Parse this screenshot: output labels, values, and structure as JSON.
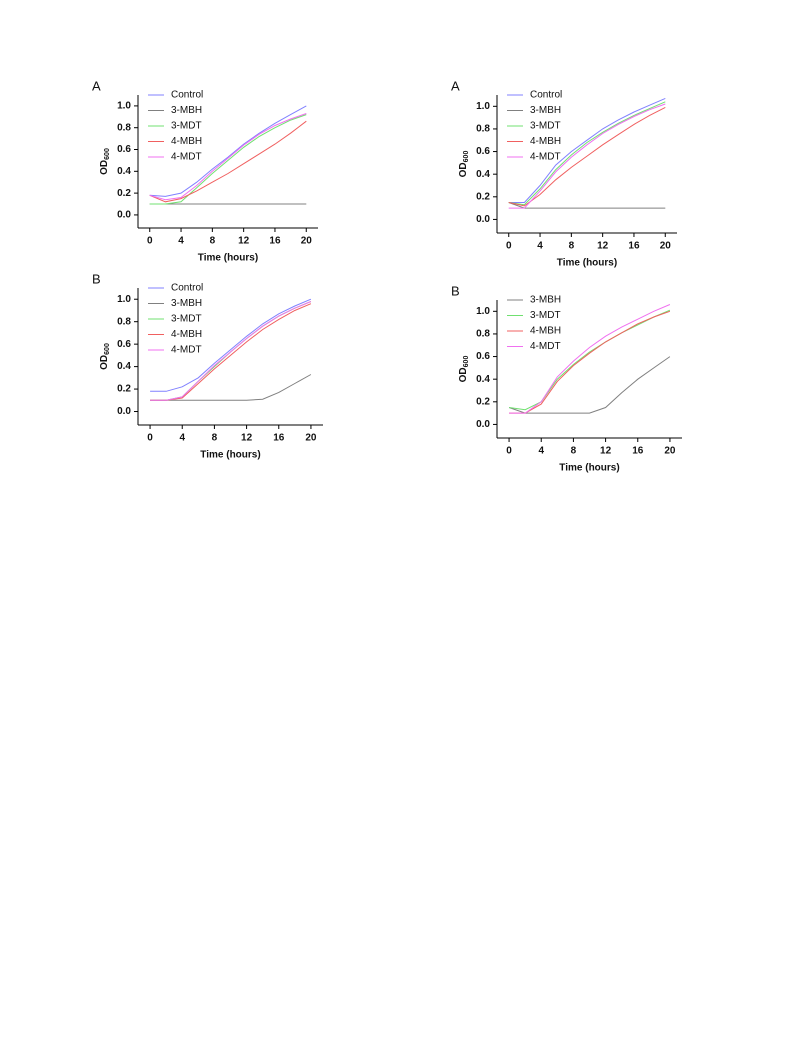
{
  "chart_data": [
    {
      "type": "line",
      "panel": "A",
      "xlabel": "Time (hours)",
      "ylabel": "OD",
      "ylabel_sub": "600",
      "x": [
        0,
        2,
        4,
        6,
        8,
        10,
        12,
        14,
        16,
        18,
        20
      ],
      "xlim": [
        -1.5,
        21.5
      ],
      "xticks": [
        0,
        4,
        8,
        12,
        16,
        20
      ],
      "ylim": [
        -0.12,
        1.1
      ],
      "yticks": [
        {
          "value": 0,
          "label": "0.0"
        },
        0.2,
        0.4,
        0.6,
        0.8,
        {
          "value": 1,
          "label": "1.0"
        }
      ],
      "series": [
        {
          "name": "Control",
          "color": "#8080ff",
          "values": [
            0.18,
            0.17,
            0.2,
            0.3,
            0.42,
            0.53,
            0.65,
            0.75,
            0.84,
            0.92,
            1.0
          ]
        },
        {
          "name": "3-MBH",
          "color": "#808080",
          "values": [
            0.1,
            0.1,
            0.1,
            0.1,
            0.1,
            0.1,
            0.1,
            0.1,
            0.1,
            0.1,
            0.1
          ]
        },
        {
          "name": "3-MDT",
          "color": "#70e070",
          "values": [
            0.1,
            0.1,
            0.12,
            0.25,
            0.38,
            0.5,
            0.62,
            0.72,
            0.8,
            0.87,
            0.92
          ]
        },
        {
          "name": "4-MBH",
          "color": "#f06060",
          "values": [
            0.18,
            0.12,
            0.15,
            0.22,
            0.3,
            0.38,
            0.47,
            0.56,
            0.65,
            0.75,
            0.86
          ]
        },
        {
          "name": "4-MDT",
          "color": "#f070f0",
          "values": [
            0.18,
            0.14,
            0.16,
            0.27,
            0.4,
            0.52,
            0.64,
            0.74,
            0.82,
            0.88,
            0.93
          ]
        }
      ]
    },
    {
      "type": "line",
      "panel": "A",
      "xlabel": "Time (hours)",
      "ylabel": "OD",
      "ylabel_sub": "600",
      "x": [
        0,
        2,
        4,
        6,
        8,
        10,
        12,
        14,
        16,
        18,
        20
      ],
      "xlim": [
        -1.5,
        21.5
      ],
      "xticks": [
        0,
        4,
        8,
        12,
        16,
        20
      ],
      "ylim": [
        -0.12,
        1.1
      ],
      "yticks": [
        {
          "value": 0,
          "label": "0.0"
        },
        0.2,
        0.4,
        0.6,
        0.8,
        {
          "value": 1,
          "label": "1.0"
        }
      ],
      "series": [
        {
          "name": "Control",
          "color": "#8080ff",
          "values": [
            0.15,
            0.15,
            0.3,
            0.48,
            0.6,
            0.7,
            0.8,
            0.88,
            0.95,
            1.01,
            1.07
          ]
        },
        {
          "name": "3-MBH",
          "color": "#808080",
          "values": [
            0.15,
            0.1,
            0.1,
            0.1,
            0.1,
            0.1,
            0.1,
            0.1,
            0.1,
            0.1,
            0.1
          ]
        },
        {
          "name": "3-MDT",
          "color": "#70e070",
          "values": [
            0.15,
            0.13,
            0.27,
            0.44,
            0.57,
            0.68,
            0.77,
            0.85,
            0.92,
            0.98,
            1.04
          ]
        },
        {
          "name": "4-MBH",
          "color": "#f06060",
          "values": [
            0.15,
            0.12,
            0.22,
            0.35,
            0.46,
            0.56,
            0.66,
            0.75,
            0.84,
            0.92,
            0.99
          ]
        },
        {
          "name": "4-MDT",
          "color": "#f070f0",
          "values": [
            0.1,
            0.1,
            0.25,
            0.42,
            0.55,
            0.66,
            0.76,
            0.84,
            0.91,
            0.97,
            1.02
          ]
        }
      ]
    },
    {
      "type": "line",
      "panel": "B",
      "xlabel": "Time (hours)",
      "ylabel": "OD",
      "ylabel_sub": "600",
      "x": [
        0,
        2,
        4,
        6,
        8,
        10,
        12,
        14,
        16,
        18,
        20
      ],
      "xlim": [
        -1.5,
        21.5
      ],
      "xticks": [
        0,
        4,
        8,
        12,
        16,
        20
      ],
      "ylim": [
        -0.12,
        1.1
      ],
      "yticks": [
        {
          "value": 0,
          "label": "0.0"
        },
        0.2,
        0.4,
        0.6,
        0.8,
        {
          "value": 1,
          "label": "1.0"
        }
      ],
      "series": [
        {
          "name": "Control",
          "color": "#8080ff",
          "values": [
            0.18,
            0.18,
            0.22,
            0.3,
            0.43,
            0.55,
            0.67,
            0.78,
            0.87,
            0.94,
            1.0
          ]
        },
        {
          "name": "3-MBH",
          "color": "#808080",
          "values": [
            0.1,
            0.1,
            0.1,
            0.1,
            0.1,
            0.1,
            0.1,
            0.11,
            0.17,
            0.25,
            0.33
          ]
        },
        {
          "name": "3-MDT",
          "color": "#70e070",
          "values": [
            0.1,
            0.1,
            0.13,
            0.27,
            0.4,
            0.53,
            0.65,
            0.76,
            0.85,
            0.92,
            0.98
          ]
        },
        {
          "name": "4-MBH",
          "color": "#f06060",
          "values": [
            0.1,
            0.1,
            0.12,
            0.25,
            0.38,
            0.5,
            0.62,
            0.73,
            0.82,
            0.9,
            0.96
          ]
        },
        {
          "name": "4-MDT",
          "color": "#f070f0",
          "values": [
            0.1,
            0.1,
            0.13,
            0.27,
            0.41,
            0.53,
            0.65,
            0.76,
            0.85,
            0.92,
            0.98
          ]
        }
      ]
    },
    {
      "type": "line",
      "panel": "B",
      "xlabel": "Time (hours)",
      "ylabel": "OD",
      "ylabel_sub": "600",
      "x": [
        0,
        2,
        4,
        6,
        8,
        10,
        12,
        14,
        16,
        18,
        20
      ],
      "xlim": [
        -1.5,
        21.5
      ],
      "xticks": [
        0,
        4,
        8,
        12,
        16,
        20
      ],
      "ylim": [
        -0.12,
        1.1
      ],
      "yticks": [
        {
          "value": 0,
          "label": "0.0"
        },
        0.2,
        0.4,
        0.6,
        0.8,
        {
          "value": 1,
          "label": "1.0"
        }
      ],
      "series": [
        {
          "name": "3-MBH",
          "color": "#808080",
          "values": [
            0.15,
            0.1,
            0.1,
            0.1,
            0.1,
            0.1,
            0.15,
            0.28,
            0.4,
            0.5,
            0.6
          ]
        },
        {
          "name": "3-MDT",
          "color": "#70e070",
          "values": [
            0.15,
            0.13,
            0.2,
            0.4,
            0.53,
            0.64,
            0.73,
            0.81,
            0.88,
            0.95,
            1.01
          ]
        },
        {
          "name": "4-MBH",
          "color": "#f06060",
          "values": [
            0.1,
            0.1,
            0.18,
            0.38,
            0.52,
            0.63,
            0.73,
            0.81,
            0.89,
            0.95,
            1.0
          ]
        },
        {
          "name": "4-MDT",
          "color": "#f070f0",
          "values": [
            0.1,
            0.1,
            0.2,
            0.42,
            0.56,
            0.68,
            0.78,
            0.86,
            0.93,
            1.0,
            1.06
          ]
        }
      ]
    }
  ]
}
